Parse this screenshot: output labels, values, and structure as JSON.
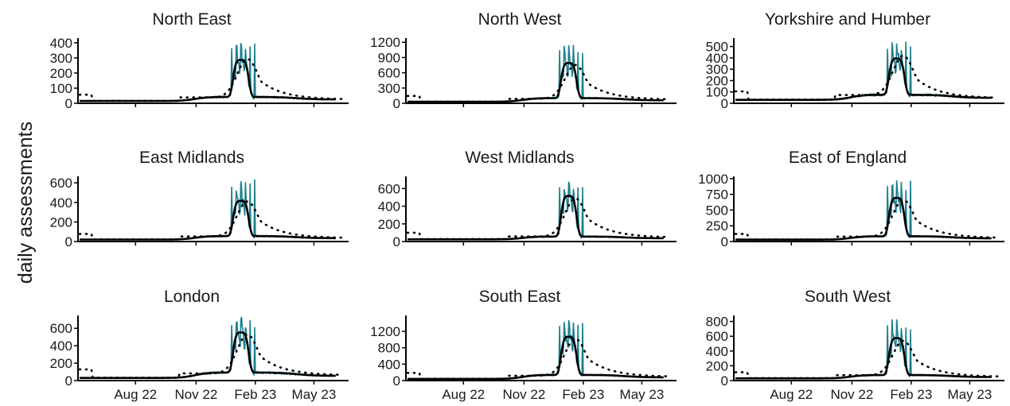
{
  "chart_data": {
    "type": "line",
    "ylabel": "daily assessments",
    "x_ticks": [
      "Aug 22",
      "Nov 22",
      "Feb 23",
      "May 23"
    ],
    "series_colors": {
      "observed": "#1a7f8e",
      "smoothed": "#000000",
      "dotted": "#000000"
    },
    "grid": false,
    "panels": [
      {
        "title": "North East",
        "ylim": [
          0,
          420
        ],
        "yticks": [
          0,
          100,
          200,
          300,
          400
        ],
        "base": 15,
        "peak": 290,
        "spike": 420,
        "post": 45,
        "trend_peak": 270,
        "trend_end": 25
      },
      {
        "title": "North West",
        "ylim": [
          0,
          1250
        ],
        "yticks": [
          0,
          300,
          600,
          900,
          1200
        ],
        "base": 30,
        "peak": 800,
        "spike": 1200,
        "post": 110,
        "trend_peak": 700,
        "trend_end": 70
      },
      {
        "title": "Yorkshire and Humber",
        "ylim": [
          0,
          560
        ],
        "yticks": [
          0,
          100,
          200,
          300,
          400,
          500
        ],
        "base": 30,
        "peak": 400,
        "spike": 550,
        "post": 80,
        "trend_peak": 380,
        "trend_end": 45
      },
      {
        "title": "East Midlands",
        "ylim": [
          0,
          650
        ],
        "yticks": [
          0,
          200,
          400,
          600
        ],
        "base": 20,
        "peak": 420,
        "spike": 640,
        "post": 60,
        "trend_peak": 380,
        "trend_end": 35
      },
      {
        "title": "West Midlands",
        "ylim": [
          0,
          720
        ],
        "yticks": [
          0,
          200,
          400,
          600
        ],
        "base": 25,
        "peak": 520,
        "spike": 700,
        "post": 60,
        "trend_peak": 460,
        "trend_end": 45
      },
      {
        "title": "East of England",
        "ylim": [
          0,
          1010
        ],
        "yticks": [
          0,
          250,
          500,
          750,
          1000
        ],
        "base": 30,
        "peak": 700,
        "spike": 1000,
        "post": 90,
        "trend_peak": 620,
        "trend_end": 55
      },
      {
        "title": "London",
        "ylim": [
          0,
          730
        ],
        "yticks": [
          0,
          200,
          400,
          600
        ],
        "base": 30,
        "peak": 560,
        "spike": 720,
        "post": 100,
        "trend_peak": 480,
        "trend_end": 60
      },
      {
        "title": "South East",
        "ylim": [
          0,
          1550
        ],
        "yticks": [
          0,
          400,
          800,
          1200
        ],
        "base": 40,
        "peak": 1080,
        "spike": 1500,
        "post": 150,
        "trend_peak": 950,
        "trend_end": 90
      },
      {
        "title": "South West",
        "ylim": [
          0,
          860
        ],
        "yticks": [
          0,
          200,
          400,
          600,
          800
        ],
        "base": 30,
        "peak": 580,
        "spike": 840,
        "post": 80,
        "trend_peak": 500,
        "trend_end": 50
      }
    ]
  }
}
